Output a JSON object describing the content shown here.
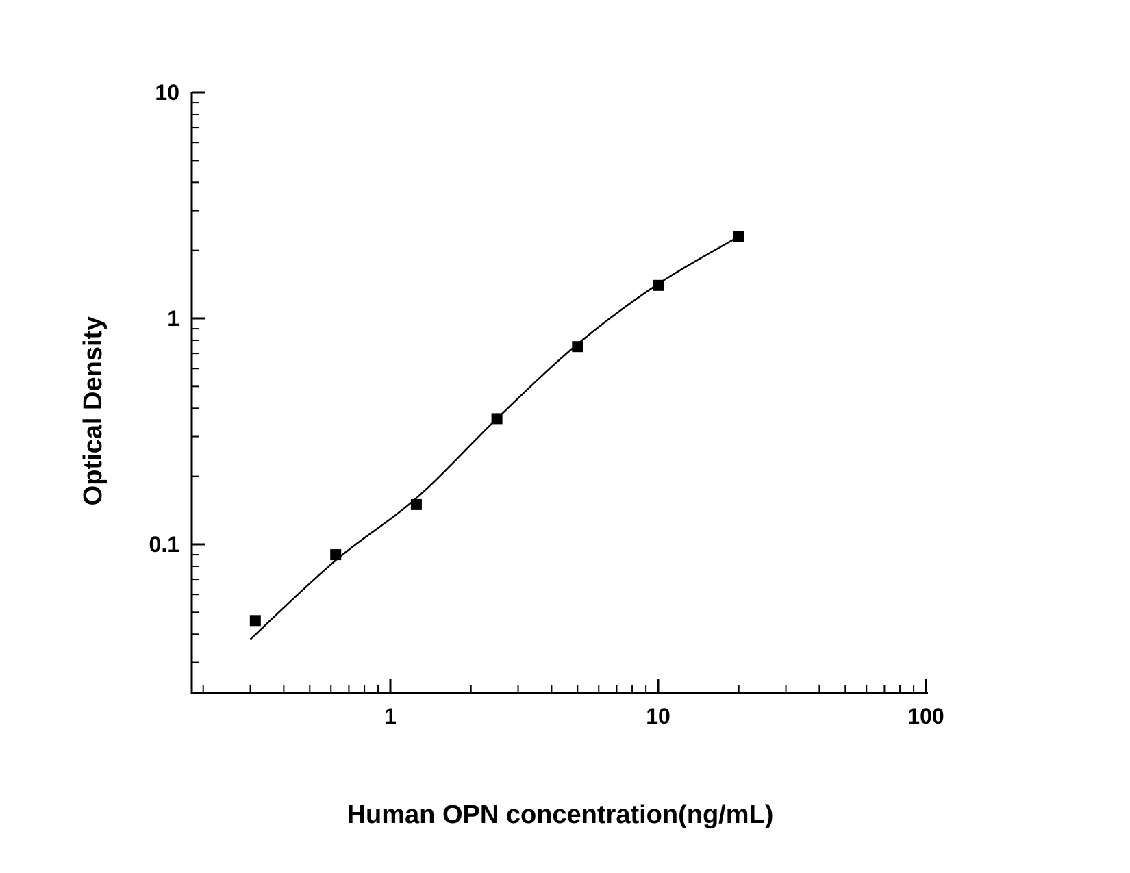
{
  "chart_data": {
    "type": "scatter",
    "title": "",
    "xlabel": "Human OPN concentration(ng/mL)",
    "ylabel": "Optical Density",
    "x_scale": "log",
    "y_scale": "log",
    "x_range": [
      0.18,
      102
    ],
    "y_range": [
      0.022,
      10
    ],
    "grid": false,
    "legend": "none",
    "marker": {
      "shape": "square",
      "color": "#000000",
      "size": 16
    },
    "line_color": "#000000",
    "axis_color": "#000000",
    "x_ticks": {
      "values": [
        1,
        10,
        100
      ],
      "labels": [
        "1",
        "10",
        "100"
      ]
    },
    "y_ticks": {
      "values": [
        0.1,
        1,
        10
      ],
      "labels": [
        "0.1",
        "1",
        "10"
      ]
    },
    "x_minor_ticks": [
      0.2,
      0.3,
      0.4,
      0.5,
      0.6,
      0.7,
      0.8,
      0.9,
      2,
      3,
      4,
      5,
      6,
      7,
      8,
      9,
      20,
      30,
      40,
      50,
      60,
      70,
      80,
      90
    ],
    "y_minor_ticks": [
      0.03,
      0.04,
      0.05,
      0.06,
      0.07,
      0.08,
      0.09,
      0.2,
      0.3,
      0.4,
      0.5,
      0.6,
      0.7,
      0.8,
      0.9,
      2,
      3,
      4,
      5,
      6,
      7,
      8,
      9
    ],
    "points": [
      {
        "x": 0.313,
        "y": 0.046
      },
      {
        "x": 0.625,
        "y": 0.09
      },
      {
        "x": 1.25,
        "y": 0.15
      },
      {
        "x": 2.5,
        "y": 0.36
      },
      {
        "x": 5,
        "y": 0.75
      },
      {
        "x": 10,
        "y": 1.4
      },
      {
        "x": 20,
        "y": 2.3
      }
    ],
    "fit_curve": [
      {
        "x": 0.3,
        "y": 0.038
      },
      {
        "x": 0.625,
        "y": 0.085
      },
      {
        "x": 1.25,
        "y": 0.16
      },
      {
        "x": 2.5,
        "y": 0.36
      },
      {
        "x": 5,
        "y": 0.77
      },
      {
        "x": 10,
        "y": 1.42
      },
      {
        "x": 20,
        "y": 2.3
      }
    ]
  }
}
